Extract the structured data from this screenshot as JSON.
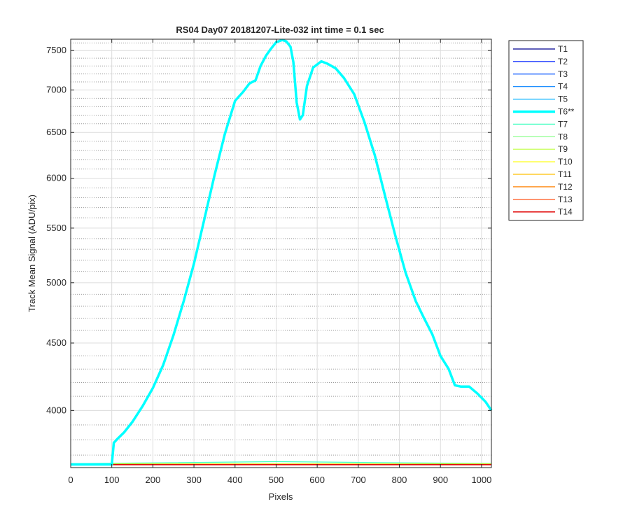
{
  "chart_data": {
    "type": "line",
    "title": "RS04 Day07 20181207-Lite-032 int time = 0.1 sec",
    "xlabel": "Pixels",
    "ylabel": "Track Mean Signal (ADU/pix)",
    "xlim": [
      0,
      1024
    ],
    "ylim": [
      3620,
      7650
    ],
    "y_scale": "log",
    "grid": true,
    "minor_grid": true,
    "x_ticks": [
      0,
      100,
      200,
      300,
      400,
      500,
      600,
      700,
      800,
      900,
      1000
    ],
    "y_ticks": [
      4000,
      4500,
      5000,
      5500,
      6000,
      6500,
      7000,
      7500
    ],
    "legend_position": "outside-right-top",
    "series": [
      {
        "name": "T1",
        "color": "#00008f",
        "width": 1.2,
        "points": [
          [
            0,
            3640
          ],
          [
            1024,
            3640
          ]
        ]
      },
      {
        "name": "T2",
        "color": "#0020ff",
        "width": 1.2,
        "points": [
          [
            0,
            3641
          ],
          [
            1024,
            3641
          ]
        ]
      },
      {
        "name": "T3",
        "color": "#0050ff",
        "width": 1.2,
        "points": [
          [
            0,
            3642
          ],
          [
            1024,
            3642
          ]
        ]
      },
      {
        "name": "T4",
        "color": "#0080ff",
        "width": 1.2,
        "points": [
          [
            0,
            3643
          ],
          [
            1024,
            3643
          ]
        ]
      },
      {
        "name": "T5",
        "color": "#00b0ff",
        "width": 1.2,
        "points": [
          [
            0,
            3644
          ],
          [
            1024,
            3644
          ]
        ]
      },
      {
        "name": "T6**",
        "color": "#00ffff",
        "width": 3.5,
        "points": [
          [
            0,
            3640
          ],
          [
            95,
            3640
          ],
          [
            100,
            3640
          ],
          [
            105,
            3780
          ],
          [
            115,
            3810
          ],
          [
            130,
            3850
          ],
          [
            150,
            3920
          ],
          [
            175,
            4030
          ],
          [
            200,
            4160
          ],
          [
            225,
            4330
          ],
          [
            250,
            4560
          ],
          [
            275,
            4840
          ],
          [
            300,
            5170
          ],
          [
            325,
            5580
          ],
          [
            350,
            6030
          ],
          [
            375,
            6480
          ],
          [
            400,
            6870
          ],
          [
            420,
            6980
          ],
          [
            435,
            7080
          ],
          [
            450,
            7120
          ],
          [
            462,
            7300
          ],
          [
            475,
            7430
          ],
          [
            487,
            7520
          ],
          [
            500,
            7610
          ],
          [
            515,
            7640
          ],
          [
            525,
            7620
          ],
          [
            535,
            7550
          ],
          [
            542,
            7350
          ],
          [
            550,
            6850
          ],
          [
            558,
            6650
          ],
          [
            565,
            6700
          ],
          [
            575,
            7050
          ],
          [
            590,
            7280
          ],
          [
            610,
            7360
          ],
          [
            625,
            7330
          ],
          [
            645,
            7270
          ],
          [
            665,
            7150
          ],
          [
            690,
            6950
          ],
          [
            715,
            6620
          ],
          [
            740,
            6250
          ],
          [
            765,
            5820
          ],
          [
            790,
            5430
          ],
          [
            815,
            5090
          ],
          [
            840,
            4840
          ],
          [
            860,
            4700
          ],
          [
            880,
            4570
          ],
          [
            900,
            4400
          ],
          [
            920,
            4300
          ],
          [
            935,
            4180
          ],
          [
            950,
            4170
          ],
          [
            970,
            4170
          ],
          [
            990,
            4120
          ],
          [
            1010,
            4060
          ],
          [
            1024,
            4000
          ]
        ]
      },
      {
        "name": "T7",
        "color": "#40ffbf",
        "width": 1.2,
        "points": [
          [
            0,
            3645
          ],
          [
            200,
            3650
          ],
          [
            500,
            3658
          ],
          [
            750,
            3652
          ],
          [
            1024,
            3646
          ]
        ]
      },
      {
        "name": "T8",
        "color": "#80ff80",
        "width": 1.2,
        "points": [
          [
            0,
            3644
          ],
          [
            1024,
            3644
          ]
        ]
      },
      {
        "name": "T9",
        "color": "#bfff40",
        "width": 1.2,
        "points": [
          [
            0,
            3643
          ],
          [
            1024,
            3643
          ]
        ]
      },
      {
        "name": "T10",
        "color": "#ffff00",
        "width": 1.2,
        "points": [
          [
            0,
            3642
          ],
          [
            1024,
            3642
          ]
        ]
      },
      {
        "name": "T11",
        "color": "#ffbf00",
        "width": 1.2,
        "points": [
          [
            0,
            3641
          ],
          [
            1024,
            3641
          ]
        ]
      },
      {
        "name": "T12",
        "color": "#ff8000",
        "width": 1.2,
        "points": [
          [
            0,
            3640
          ],
          [
            1024,
            3640
          ]
        ]
      },
      {
        "name": "T13",
        "color": "#ff4000",
        "width": 1.2,
        "points": [
          [
            0,
            3639
          ],
          [
            1024,
            3639
          ]
        ]
      },
      {
        "name": "T14",
        "color": "#e00000",
        "width": 1.5,
        "points": [
          [
            0,
            3638
          ],
          [
            1024,
            3638
          ]
        ]
      }
    ]
  }
}
